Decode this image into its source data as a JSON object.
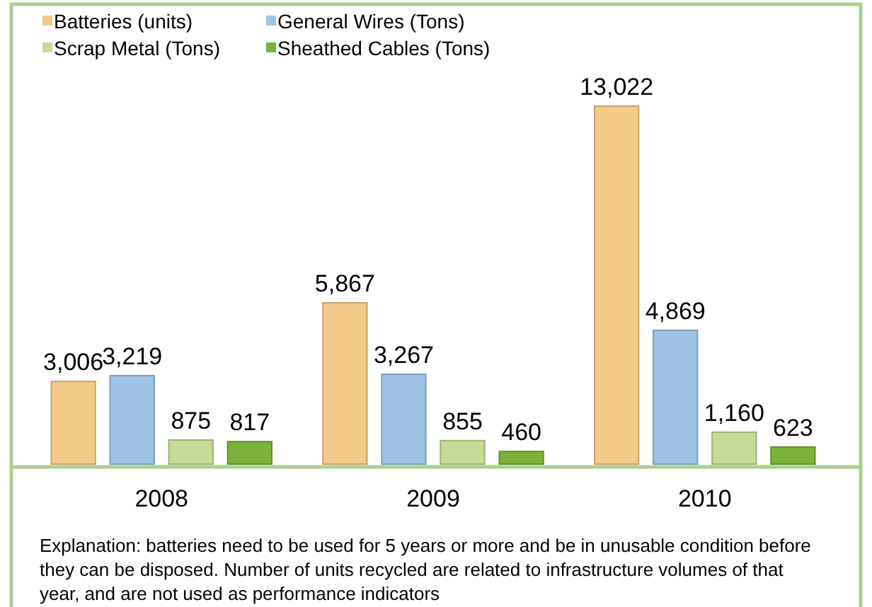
{
  "chart_data": {
    "type": "bar",
    "categories": [
      "2008",
      "2009",
      "2010"
    ],
    "series": [
      {
        "name": "Batteries (units)",
        "color": "#f5c98a",
        "values": [
          3006,
          5867,
          13022
        ],
        "value_labels": [
          "3,006",
          "5,867",
          "13,022"
        ]
      },
      {
        "name": "General Wires (Tons)",
        "color": "#9dc3e6",
        "values": [
          3219,
          3267,
          4869
        ],
        "value_labels": [
          "3,219",
          "3,267",
          "4,869"
        ]
      },
      {
        "name": "Scrap Metal (Tons)",
        "color": "#c4dc96",
        "values": [
          875,
          855,
          1160
        ],
        "value_labels": [
          "875",
          "855",
          "1,160"
        ]
      },
      {
        "name": "Sheathed Cables (Tons)",
        "color": "#7ab23c",
        "values": [
          817,
          460,
          623
        ],
        "value_labels": [
          "817",
          "460",
          "623"
        ]
      }
    ],
    "legend": "top left",
    "annotations": [
      "Explanation: batteries need to be used for 5 years or more and be in unusable condition before they can be disposed. Number of units recycled are related to infrastructure volumes of that year, and are not used as performance indicators"
    ]
  }
}
